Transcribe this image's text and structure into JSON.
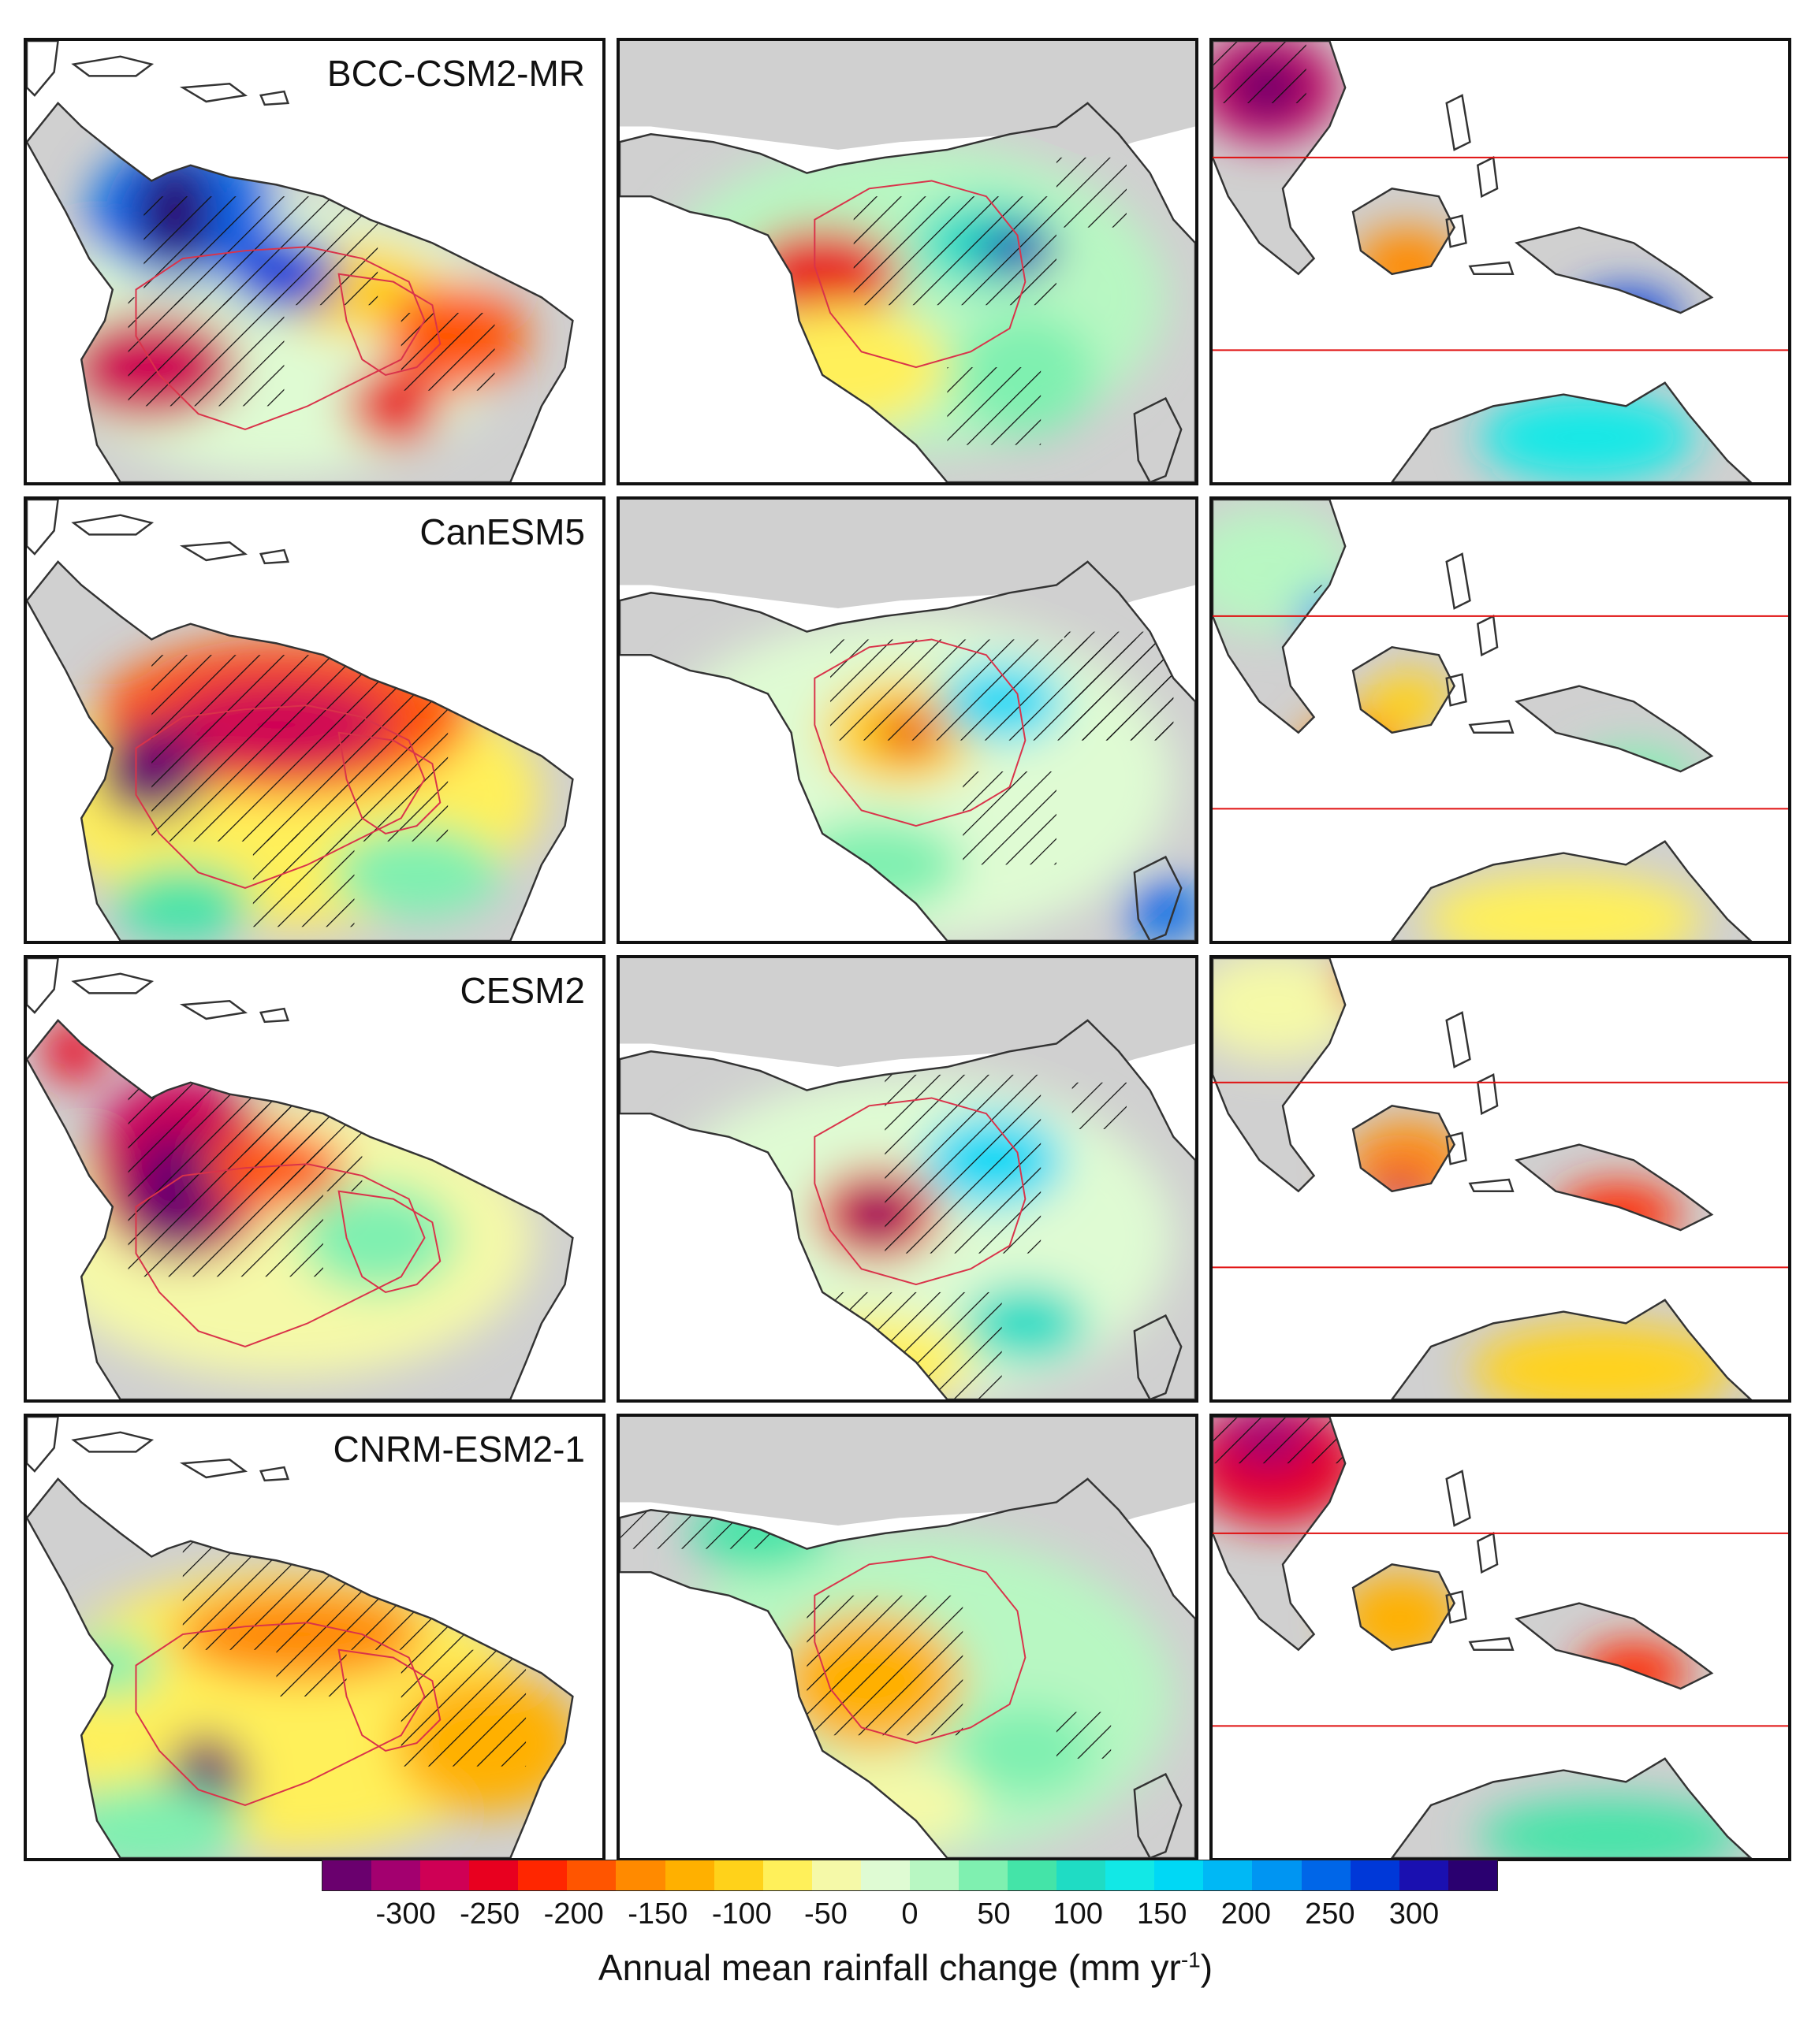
{
  "figure": {
    "models": [
      "BCC-CSM2-MR",
      "CanESM5",
      "CESM2",
      "CNRM-ESM2-1"
    ],
    "regions": [
      "South America",
      "Africa",
      "Maritime Continent"
    ],
    "colorbar": {
      "colors": [
        "#6a006e",
        "#a3006f",
        "#cf0055",
        "#e8001f",
        "#ff2600",
        "#ff5500",
        "#ff8a00",
        "#ffb000",
        "#ffd21a",
        "#fff05a",
        "#f5f9a8",
        "#dffbd3",
        "#b8f7c2",
        "#7ff0b0",
        "#44e4a8",
        "#1fdcc4",
        "#12e8e6",
        "#00d8f5",
        "#00b8f5",
        "#0095f2",
        "#0066e8",
        "#0038d8",
        "#1a10b0",
        "#2a0070"
      ],
      "tick_labels": [
        "-300",
        "-250",
        "-200",
        "-150",
        "-100",
        "-50",
        "0",
        "50",
        "100",
        "150",
        "200",
        "250",
        "300"
      ],
      "tick_values": [
        -300,
        -250,
        -200,
        -150,
        -100,
        -50,
        0,
        50,
        100,
        150,
        200,
        250,
        300
      ],
      "range": [
        -350,
        350
      ],
      "title_main": "Annual mean rainfall change (mm yr",
      "title_sup": "-1",
      "title_end": ")"
    },
    "colors": {
      "land_outline": "#333333",
      "basin_outline": "#d9334a",
      "latitude_line": "#e01010",
      "masked_land": "#d0d0d0",
      "hatch": "#111111"
    }
  }
}
